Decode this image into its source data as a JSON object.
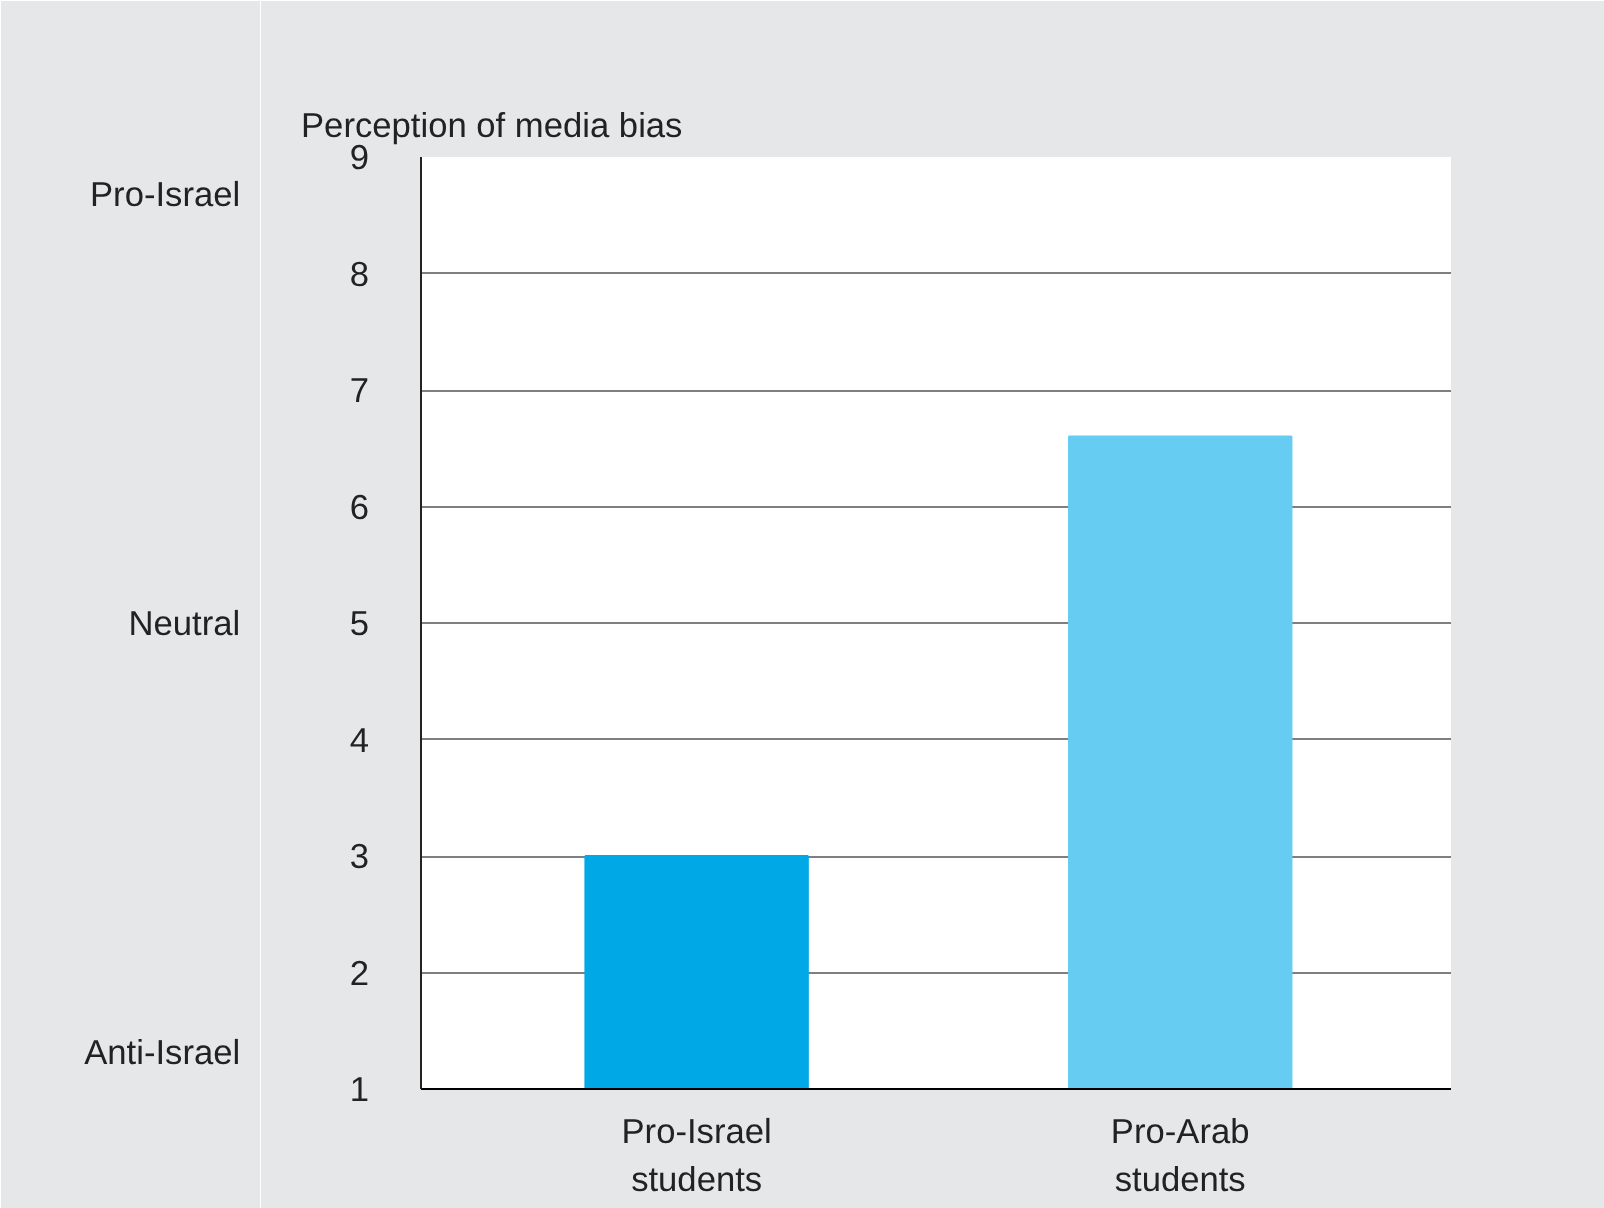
{
  "chart_data": {
    "type": "bar",
    "ylabel": "Perception of media bias",
    "categories": [
      "Pro-Israel\nstudents",
      "Pro-Arab\nstudents"
    ],
    "values": [
      3.0,
      6.6
    ],
    "colors": [
      "#00a9e6",
      "#66ccf2"
    ],
    "ylim": [
      1,
      9
    ],
    "yticks": [
      1,
      2,
      3,
      4,
      5,
      6,
      7,
      8,
      9
    ],
    "annotations": [
      "Pro-Israel",
      "Neutral",
      "Anti-Israel"
    ],
    "grid": "y"
  }
}
